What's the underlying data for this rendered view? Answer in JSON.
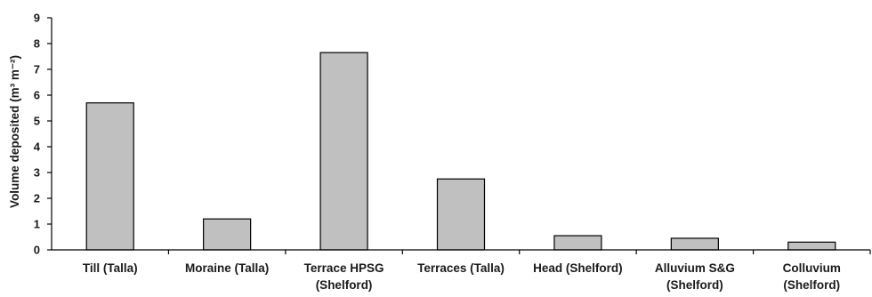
{
  "chart_data": {
    "type": "bar",
    "categories": [
      [
        "Till (Talla)"
      ],
      [
        "Moraine (Talla)"
      ],
      [
        "Terrace HPSG",
        "(Shelford)"
      ],
      [
        "Terraces (Talla)"
      ],
      [
        "Head (Shelford)"
      ],
      [
        "Alluvium S&G",
        "(Shelford)"
      ],
      [
        "Colluvium",
        "(Shelford)"
      ]
    ],
    "values": [
      5.7,
      1.2,
      7.65,
      2.75,
      0.55,
      0.45,
      0.3
    ],
    "ylabel": "Volume deposited (m³ m⁻²)",
    "ylim": [
      0,
      9
    ],
    "yticks": [
      0,
      1,
      2,
      3,
      4,
      5,
      6,
      7,
      8,
      9
    ],
    "bar_color": "#c0c0c0",
    "grid": false
  }
}
